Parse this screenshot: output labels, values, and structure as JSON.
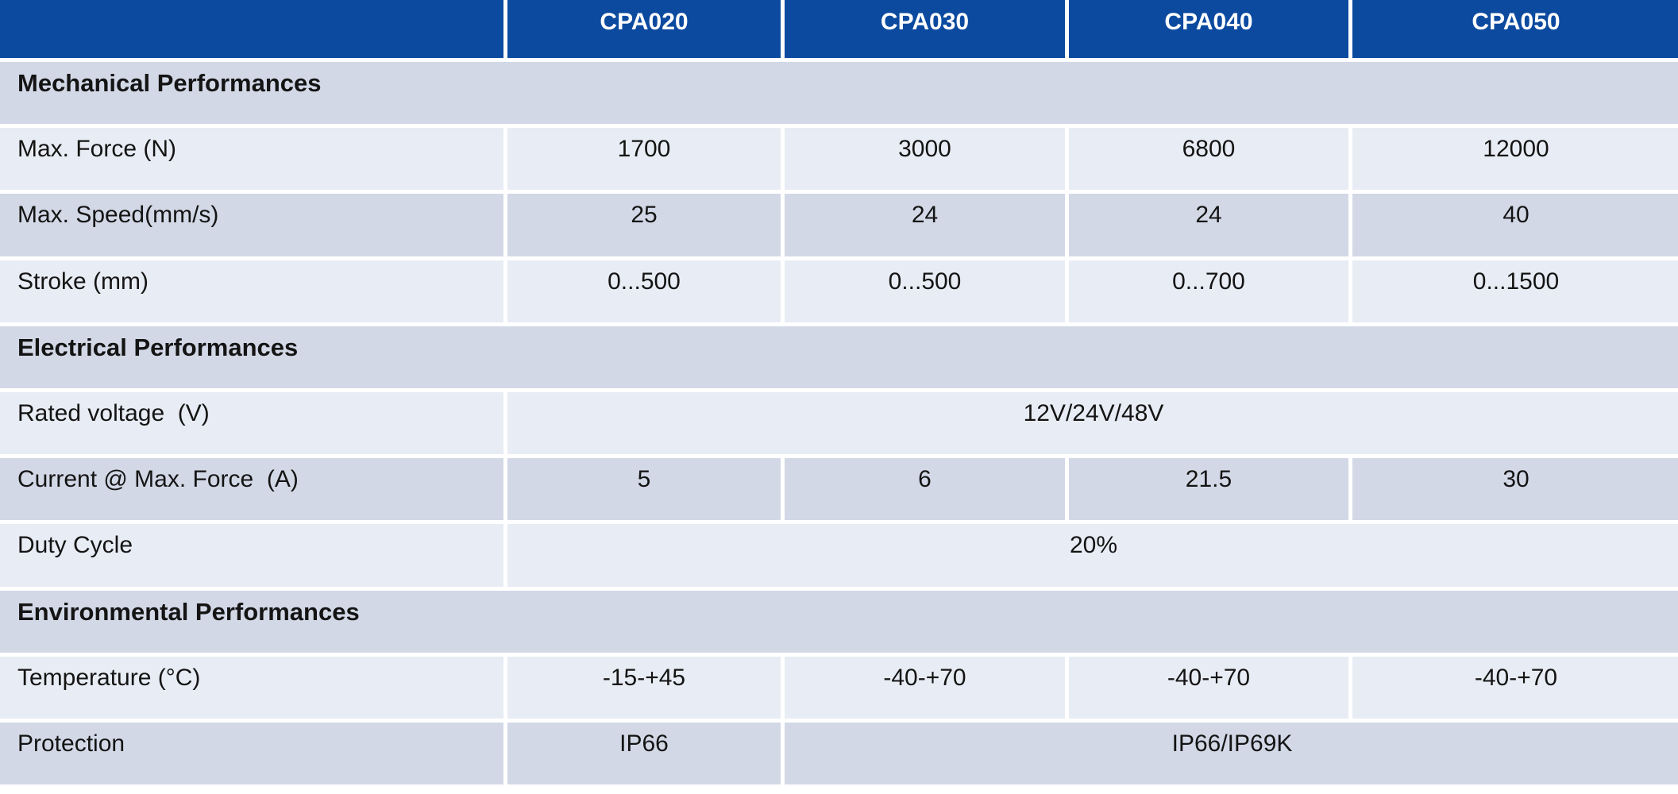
{
  "table": {
    "columns": [
      "",
      "CPA020",
      "CPA030",
      "CPA040",
      "CPA050"
    ],
    "sections": [
      {
        "title": "Mechanical Performances",
        "rows": [
          {
            "label": "Max. Force (N)",
            "values": [
              "1700",
              "3000",
              "6800",
              "12000"
            ]
          },
          {
            "label": "Max. Speed(mm/s)",
            "values": [
              "25",
              "24",
              "24",
              "40"
            ]
          },
          {
            "label": "Stroke (mm)",
            "values": [
              "0...500",
              "0...500",
              "0...700",
              "0...1500"
            ]
          }
        ]
      },
      {
        "title": "Electrical Performances",
        "rows": [
          {
            "label": "Rated voltage  (V)",
            "span_value": "12V/24V/48V"
          },
          {
            "label": "Current @ Max. Force  (A)",
            "values": [
              "5",
              "6",
              "21.5",
              "30"
            ]
          },
          {
            "label": "Duty Cycle",
            "span_value": "20%"
          }
        ]
      },
      {
        "title": "Environmental Performances",
        "rows": [
          {
            "label": "Temperature (°C)",
            "values": [
              "-15-+45",
              "-40-+70",
              "-40-+70",
              "-40-+70"
            ]
          },
          {
            "label": "Protection",
            "cpa020_value": "IP66",
            "span_value": "IP66/IP69K"
          }
        ]
      }
    ],
    "colors": {
      "header_bg": "#0b4a9f",
      "header_text": "#ffffff",
      "band_light": "#e8ecf4",
      "band_dark": "#d2d8e6",
      "divider": "#ffffff",
      "body_text": "#141414"
    }
  }
}
